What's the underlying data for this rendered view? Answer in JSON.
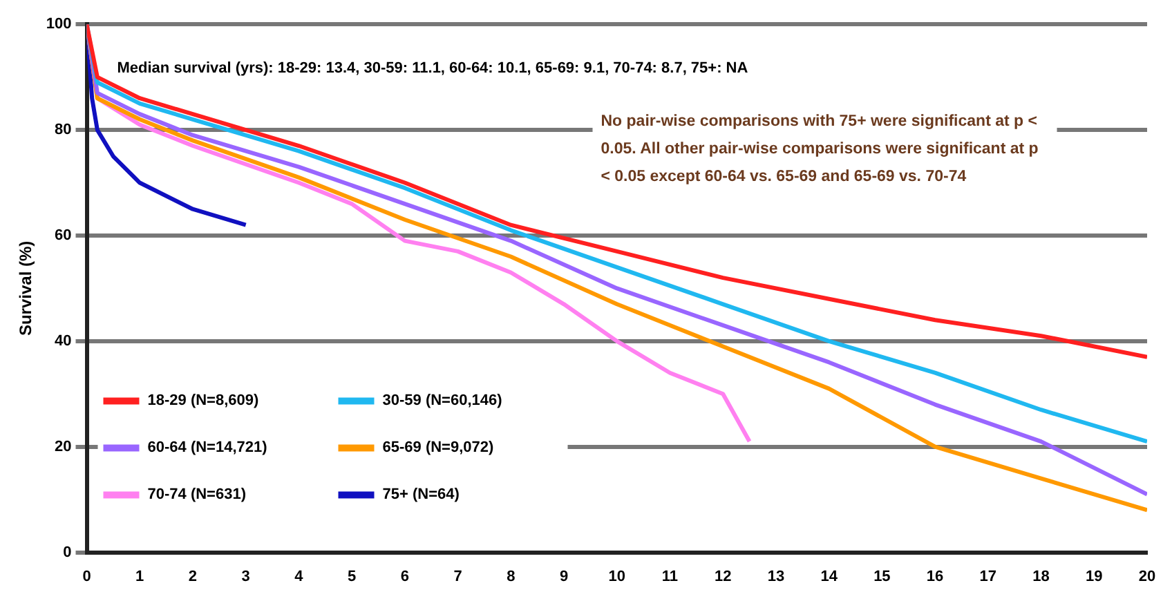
{
  "chart_data": {
    "type": "line",
    "ylabel": "Survival (%)",
    "xlim": [
      0,
      20
    ],
    "xticks": [
      0,
      1,
      2,
      3,
      4,
      5,
      6,
      7,
      8,
      9,
      10,
      11,
      12,
      13,
      14,
      15,
      16,
      17,
      18,
      19,
      20
    ],
    "ylim": [
      0,
      100
    ],
    "yticks": [
      0,
      20,
      40,
      60,
      80,
      100
    ],
    "grid": "y",
    "legend": "bottom left",
    "marker": "none",
    "line_style": "solid",
    "annotations": [
      "Median survival (yrs): 18-29: 13.4, 30-59: 11.1, 60-64: 10.1, 65-69: 9.1, 70-74: 8.7, 75+: NA",
      "No pair-wise comparisons with 75+ were significant at p < 0.05. All other pair-wise comparisons were significant at p < 0.05 except 60-64 vs. 65-69 and 65-69 vs. 70-74"
    ],
    "series": [
      {
        "name": "18-29 (N=8,609)",
        "color": "#ff2020",
        "x": [
          0,
          0.2,
          1,
          2,
          4,
          6,
          8,
          10,
          12,
          14,
          16,
          18,
          20
        ],
        "values": [
          100,
          90,
          86,
          83,
          77,
          70,
          62,
          57,
          52,
          48,
          44,
          41,
          37
        ]
      },
      {
        "name": "30-59 (N=60,146)",
        "color": "#20b8f0",
        "x": [
          0,
          0.2,
          1,
          2,
          4,
          6,
          8,
          10,
          12,
          14,
          16,
          18,
          20
        ],
        "values": [
          100,
          89,
          85,
          82,
          76,
          69,
          61,
          54,
          47,
          40,
          34,
          27,
          21
        ]
      },
      {
        "name": "60-64 (N=14,721)",
        "color": "#9966ff",
        "x": [
          0,
          0.2,
          1,
          2,
          4,
          6,
          8,
          10,
          12,
          14,
          16,
          18,
          20
        ],
        "values": [
          100,
          87,
          83,
          79,
          73,
          66,
          59,
          50,
          43,
          36,
          28,
          21,
          11
        ]
      },
      {
        "name": "65-69 (N=9,072)",
        "color": "#ff9900",
        "x": [
          0,
          0.2,
          1,
          2,
          4,
          6,
          8,
          10,
          12,
          14,
          16,
          18,
          20
        ],
        "values": [
          100,
          86,
          82,
          78,
          71,
          63,
          56,
          47,
          39,
          31,
          20,
          14,
          8
        ]
      },
      {
        "name": "70-74 (N=631)",
        "color": "#ff80f0",
        "x": [
          0,
          0.2,
          1,
          2,
          4,
          5,
          6,
          7,
          8,
          9,
          10,
          11,
          12,
          12.5
        ],
        "values": [
          100,
          86,
          81,
          77,
          70,
          66,
          59,
          57,
          53,
          47,
          40,
          34,
          30,
          21
        ]
      },
      {
        "name": "75+ (N=64)",
        "color": "#1010c0",
        "x": [
          0,
          0.1,
          0.2,
          0.5,
          1,
          2,
          3
        ],
        "values": [
          100,
          86,
          80,
          75,
          70,
          65,
          62
        ]
      }
    ]
  }
}
